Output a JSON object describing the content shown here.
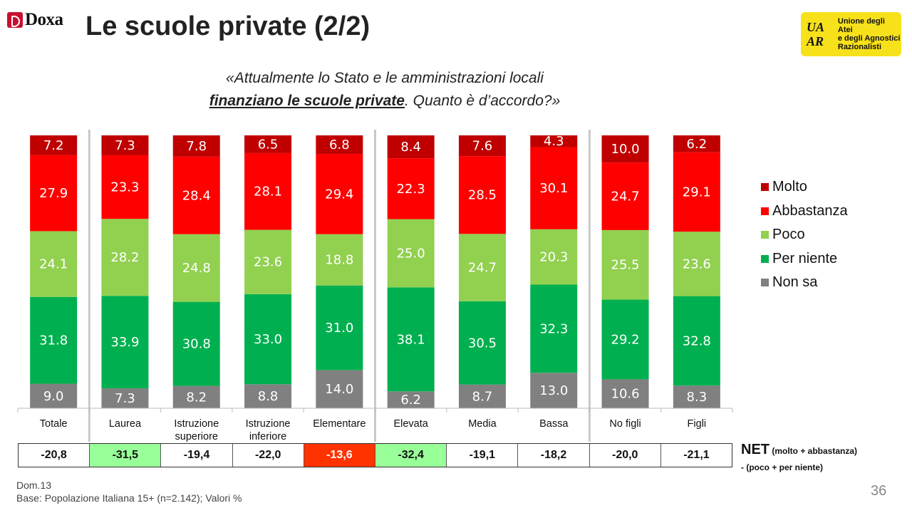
{
  "header": {
    "brand": "Doxa",
    "title": "Le scuole private (2/2)",
    "uaar_glyphs": "UA AR",
    "uaar_text": [
      "Unione degli Atei",
      "e degli Agnostici",
      "Razionalisti"
    ]
  },
  "question": {
    "line1": "«Attualmente lo Stato e le amministrazioni locali",
    "underlined": "finanziano le scuole private",
    "line2_rest": ". Quanto è d’accordo?»"
  },
  "colors": {
    "Molto": "#c00000",
    "Abbastanza": "#ff0000",
    "Poco": "#92d050",
    "Per niente": "#00b050",
    "Non sa": "#808080",
    "net_green": "#99ff99",
    "net_red": "#ff3300"
  },
  "chart_data": {
    "type": "bar",
    "stacked": true,
    "percent": true,
    "categories": [
      [
        "Totale"
      ],
      [
        "Laurea"
      ],
      [
        "Istruzione",
        "superiore"
      ],
      [
        "Istruzione",
        "inferiore"
      ],
      [
        "Elementare"
      ],
      [
        "Elevata"
      ],
      [
        "Media"
      ],
      [
        "Bassa"
      ],
      [
        "No figli"
      ],
      [
        "Figli"
      ]
    ],
    "separators_after": [
      0,
      4,
      7
    ],
    "series": [
      {
        "name": "Non sa",
        "values": [
          9.0,
          7.3,
          8.2,
          8.8,
          14.0,
          6.2,
          8.7,
          13.0,
          10.6,
          8.3
        ]
      },
      {
        "name": "Per niente",
        "values": [
          31.8,
          33.9,
          30.8,
          33.0,
          31.0,
          38.1,
          30.5,
          32.3,
          29.2,
          32.8
        ]
      },
      {
        "name": "Poco",
        "values": [
          24.1,
          28.2,
          24.8,
          23.6,
          18.8,
          25.0,
          24.7,
          20.3,
          25.5,
          23.6
        ]
      },
      {
        "name": "Abbastanza",
        "values": [
          27.9,
          23.3,
          28.4,
          28.1,
          29.4,
          22.3,
          28.5,
          30.1,
          24.7,
          29.1
        ]
      },
      {
        "name": "Molto",
        "values": [
          7.2,
          7.3,
          7.8,
          6.5,
          6.8,
          8.4,
          7.6,
          4.3,
          10.0,
          6.2
        ]
      }
    ],
    "legend_order": [
      "Molto",
      "Abbastanza",
      "Poco",
      "Per niente",
      "Non sa"
    ],
    "legend_position": "right"
  },
  "net": {
    "values": [
      "-20,8",
      "-31,5",
      "-19,4",
      "-22,0",
      "-13,6",
      "-32,4",
      "-19,1",
      "-18,2",
      "-20,0",
      "-21,1"
    ],
    "highlight": [
      "none",
      "green",
      "none",
      "none",
      "red",
      "green",
      "none",
      "none",
      "none",
      "none"
    ],
    "label_big": "NET",
    "label_small": " (molto + abbastanza)",
    "label_line2": "- (poco + per niente)"
  },
  "footer": {
    "line1": "Dom.13",
    "line2": "Base: Popolazione Italiana 15+ (n=2.142); Valori %",
    "page": "36"
  }
}
